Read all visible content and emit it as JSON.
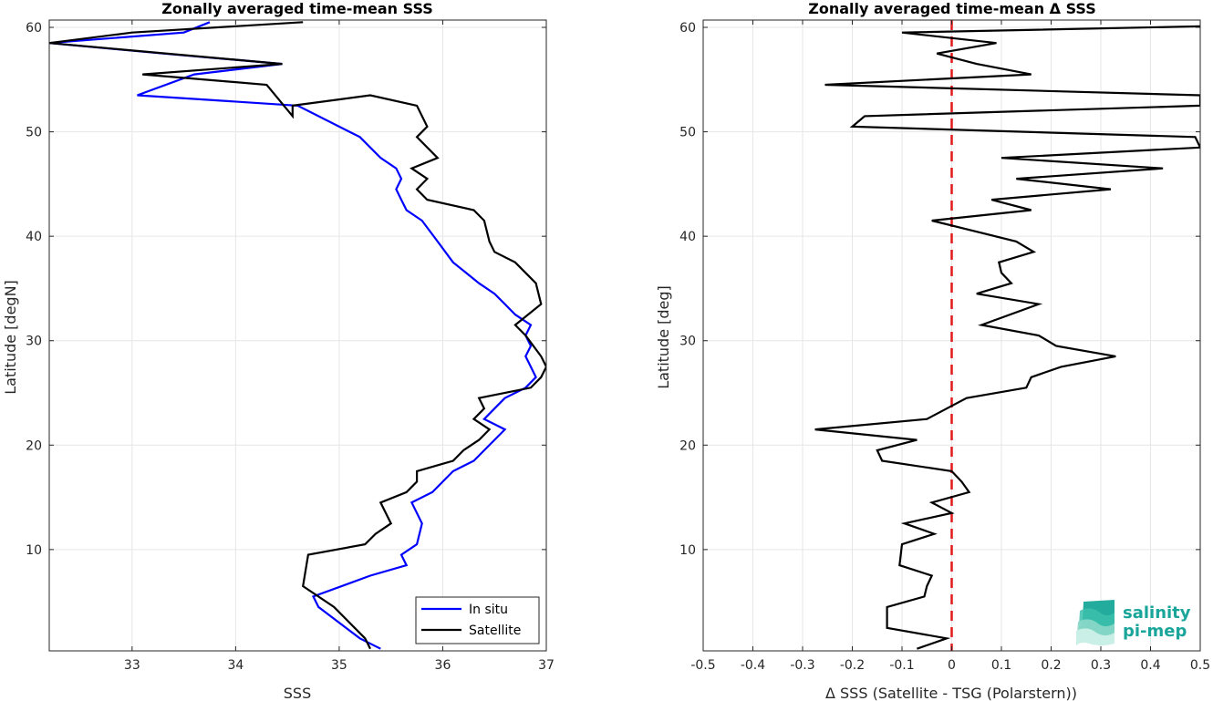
{
  "chart_data": [
    {
      "type": "line",
      "title": "Zonally averaged time-mean SSS",
      "xlabel": "SSS",
      "ylabel": "Latitude [degN]",
      "xlim": [
        32.2,
        37.0
      ],
      "ylim": [
        0.3,
        60.7
      ],
      "xticks": [
        33,
        34,
        35,
        36,
        37
      ],
      "yticks": [
        10,
        20,
        30,
        40,
        50,
        60
      ],
      "grid": true,
      "legend_position": "bottom-right",
      "series": [
        {
          "name": "In situ",
          "color": "#0000ff",
          "x": [
            35.4,
            35.2,
            34.8,
            34.75,
            35.3,
            35.65,
            35.6,
            35.75,
            35.8,
            35.75,
            35.7,
            35.9,
            36.1,
            36.3,
            36.4,
            36.6,
            36.4,
            36.5,
            36.6,
            36.8,
            36.9,
            36.85,
            36.8,
            36.85,
            36.8,
            36.85,
            36.7,
            36.6,
            36.5,
            36.35,
            36.1,
            35.95,
            35.8,
            35.65,
            35.6,
            35.55,
            35.6,
            35.55,
            35.4,
            35.2,
            35.0,
            34.8,
            34.6,
            33.05,
            33.6,
            34.45,
            33.3,
            32.2,
            33.5,
            33.75
          ],
          "y": [
            0.5,
            1.5,
            4.5,
            5.5,
            7.5,
            8.5,
            9.5,
            10.5,
            12.5,
            13.5,
            14.5,
            15.5,
            17.5,
            18.5,
            19.5,
            21.5,
            22.5,
            23.5,
            24.5,
            25.5,
            26.5,
            27.5,
            28.5,
            29.5,
            30.5,
            31.5,
            32.5,
            33.5,
            34.5,
            35.5,
            37.5,
            39.5,
            41.5,
            42.5,
            43.5,
            44.5,
            45.5,
            46.5,
            47.5,
            49.5,
            50.5,
            51.5,
            52.5,
            53.5,
            55.5,
            56.5,
            57.5,
            58.5,
            59.5,
            60.5
          ]
        },
        {
          "name": "Satellite",
          "color": "#000000",
          "x": [
            35.3,
            35.25,
            34.95,
            34.65,
            34.7,
            35.25,
            35.35,
            35.5,
            35.4,
            35.65,
            35.75,
            35.75,
            36.1,
            36.2,
            36.35,
            36.45,
            36.3,
            36.4,
            36.35,
            36.85,
            36.95,
            37.0,
            36.95,
            36.8,
            36.7,
            36.95,
            36.9,
            36.8,
            36.7,
            36.5,
            36.45,
            36.4,
            36.3,
            35.85,
            35.75,
            35.85,
            35.7,
            35.95,
            35.75,
            35.85,
            35.75,
            35.3,
            34.55,
            34.55,
            34.3,
            33.1,
            34.45,
            32.2,
            33.0,
            34.65
          ],
          "y": [
            0.5,
            1.5,
            4.5,
            6.5,
            9.5,
            10.5,
            11.5,
            12.5,
            14.5,
            15.5,
            16.5,
            17.5,
            18.5,
            19.5,
            20.5,
            21.5,
            22.5,
            23.5,
            24.5,
            25.5,
            26.5,
            27.5,
            28.5,
            30.5,
            31.5,
            33.5,
            35.5,
            36.5,
            37.5,
            38.5,
            39.5,
            41.5,
            42.5,
            43.5,
            44.5,
            45.5,
            46.5,
            47.5,
            49.5,
            50.5,
            52.5,
            53.5,
            52.5,
            51.5,
            54.5,
            55.5,
            56.5,
            58.5,
            59.5,
            60.5
          ]
        }
      ]
    },
    {
      "type": "line",
      "title": "Zonally averaged time-mean Δ SSS",
      "xlabel": "Δ SSS (Satellite - TSG (Polarstern))",
      "ylabel": "Latitude [deg]",
      "xlim": [
        -0.5,
        0.5
      ],
      "ylim": [
        0.3,
        60.7
      ],
      "xticks": [
        -0.5,
        -0.4,
        -0.3,
        -0.2,
        -0.1,
        0,
        0.1,
        0.2,
        0.3,
        0.4,
        0.5
      ],
      "xtick_labels": [
        "-0.5",
        "-0.4",
        "-0.3",
        "-0.2",
        "-0.1",
        "0",
        "0.1",
        "0.2",
        "0.3",
        "0.4",
        "0.5"
      ],
      "yticks": [
        10,
        20,
        30,
        40,
        50,
        60
      ],
      "grid": true,
      "reference_line": {
        "x": 0,
        "color": "#e31a1c",
        "style": "dashed"
      },
      "series": [
        {
          "color": "#000000",
          "x": [
            -0.07,
            -0.01,
            -0.13,
            -0.13,
            -0.055,
            -0.05,
            -0.04,
            -0.105,
            -0.1,
            -0.035,
            -0.095,
            0.0,
            -0.04,
            0.035,
            0.02,
            0.0,
            -0.14,
            -0.15,
            -0.07,
            -0.275,
            -0.05,
            -0.01,
            0.03,
            0.15,
            0.16,
            0.22,
            0.33,
            0.21,
            0.175,
            0.06,
            0.175,
            0.05,
            0.12,
            0.1,
            0.095,
            0.165,
            0.13,
            0.045,
            -0.04,
            0.16,
            0.08,
            0.32,
            0.13,
            0.425,
            0.1,
            0.5,
            0.49,
            -0.2,
            -0.175,
            0.5,
            0.5,
            -0.255,
            0.16,
            0.05,
            -0.03,
            0.09,
            -0.1,
            0.5
          ],
          "y": [
            0.5,
            1.5,
            2.5,
            4.5,
            5.5,
            6.5,
            7.5,
            8.5,
            10.5,
            11.5,
            12.5,
            13.5,
            14.5,
            15.5,
            16.5,
            17.5,
            18.5,
            19.5,
            20.5,
            21.5,
            22.5,
            23.5,
            24.5,
            25.5,
            26.5,
            27.5,
            28.5,
            29.5,
            30.5,
            31.5,
            33.5,
            34.5,
            35.5,
            36.5,
            37.5,
            38.5,
            39.5,
            40.5,
            41.5,
            42.5,
            43.5,
            44.5,
            45.5,
            46.5,
            47.5,
            48.5,
            49.5,
            50.5,
            51.5,
            52.5,
            53.5,
            54.5,
            55.5,
            56.5,
            57.5,
            58.5,
            59.5,
            60.1
          ]
        }
      ]
    }
  ],
  "logo": {
    "line1": "salinity",
    "line2": "pi-mep",
    "color": "#1aa59a"
  }
}
